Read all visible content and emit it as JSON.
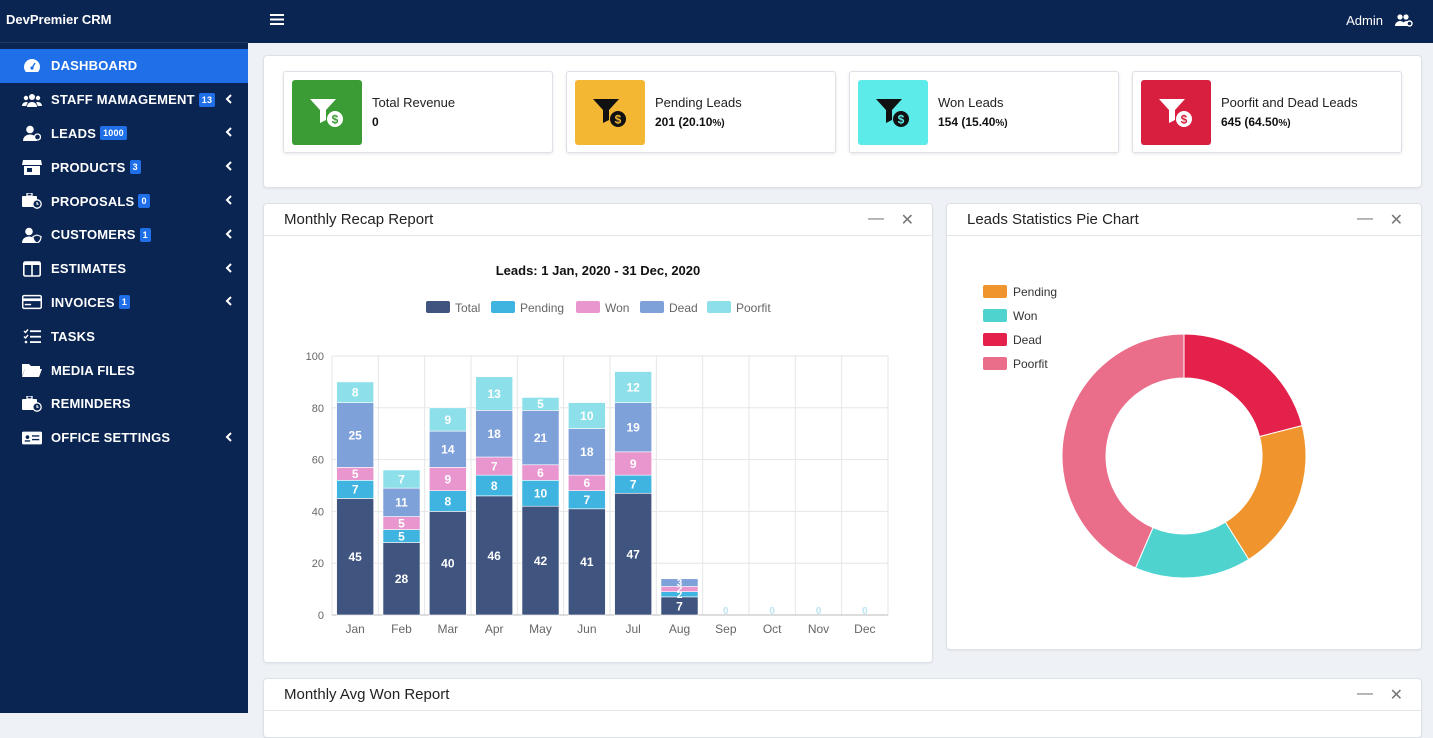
{
  "sidebar": {
    "brand": "DevPremier CRM",
    "items": [
      {
        "label": "DASHBOARD",
        "icon": "dashboard-icon",
        "badge": null,
        "active": true,
        "chev": false
      },
      {
        "label": "STAFF MAMAGEMENT",
        "icon": "users-icon",
        "badge": "13",
        "active": false,
        "chev": true
      },
      {
        "label": "LEADS",
        "icon": "user-icon",
        "badge": "1000",
        "active": false,
        "chev": true
      },
      {
        "label": "PRODUCTS",
        "icon": "store-icon",
        "badge": "3",
        "active": false,
        "chev": true
      },
      {
        "label": "PROPOSALS",
        "icon": "briefcase-clock-icon",
        "badge": "0",
        "active": false,
        "chev": true
      },
      {
        "label": "CUSTOMERS",
        "icon": "user-shield-icon",
        "badge": "1",
        "active": false,
        "chev": true
      },
      {
        "label": "ESTIMATES",
        "icon": "columns-icon",
        "badge": null,
        "active": false,
        "chev": true
      },
      {
        "label": "INVOICES",
        "icon": "card-icon",
        "badge": "1",
        "active": false,
        "chev": true
      },
      {
        "label": "TASKS",
        "icon": "tasks-icon",
        "badge": null,
        "active": false,
        "chev": false
      },
      {
        "label": "MEDIA FILES",
        "icon": "folder-icon",
        "badge": null,
        "active": false,
        "chev": false
      },
      {
        "label": "REMINDERS",
        "icon": "briefcase-clock-icon",
        "badge": null,
        "active": false,
        "chev": false
      },
      {
        "label": "OFFICE SETTINGS",
        "icon": "settings-card-icon",
        "badge": null,
        "active": false,
        "chev": true
      }
    ]
  },
  "topbar": {
    "user": "Admin"
  },
  "stats": [
    {
      "label": "Total Revenue",
      "value": "0",
      "pct": "",
      "color": "#3b9b35",
      "icon_color": "#ffffff"
    },
    {
      "label": "Pending Leads",
      "value": "201 (20.10",
      "pct": "%)",
      "color": "#f3b733",
      "icon_color": "#111111"
    },
    {
      "label": "Won Leads",
      "value": "154 (15.40",
      "pct": "%)",
      "color": "#5cebe8",
      "icon_color": "#111111"
    },
    {
      "label": "Poorfit and Dead Leads",
      "value": "645 (64.50",
      "pct": "%)",
      "color": "#d81f3f",
      "icon_color": "#ffffff"
    }
  ],
  "recap": {
    "title": "Monthly Recap Report",
    "chart_data": {
      "type": "bar",
      "title": "Leads: 1 Jan, 2020 - 31 Dec, 2020",
      "categories": [
        "Jan",
        "Feb",
        "Mar",
        "Apr",
        "May",
        "Jun",
        "Jul",
        "Aug",
        "Sep",
        "Oct",
        "Nov",
        "Dec"
      ],
      "stacked": true,
      "ylim": [
        0,
        100
      ],
      "yticks": [
        0,
        20,
        40,
        60,
        80,
        100
      ],
      "grid": true,
      "legend_position": "top",
      "series": [
        {
          "name": "Total",
          "color": "#3f5580",
          "values": [
            45,
            28,
            40,
            46,
            42,
            41,
            47,
            7,
            0,
            0,
            0,
            0
          ]
        },
        {
          "name": "Pending",
          "color": "#3fb4e0",
          "values": [
            7,
            5,
            8,
            8,
            10,
            7,
            7,
            2,
            0,
            0,
            0,
            0
          ]
        },
        {
          "name": "Won",
          "color": "#e996cf",
          "values": [
            5,
            5,
            9,
            7,
            6,
            6,
            9,
            2,
            0,
            0,
            0,
            0
          ]
        },
        {
          "name": "Dead",
          "color": "#7fa1da",
          "values": [
            25,
            11,
            14,
            18,
            21,
            18,
            19,
            3,
            0,
            0,
            0,
            0
          ]
        },
        {
          "name": "Poorfit",
          "color": "#8de0ea",
          "values": [
            8,
            7,
            9,
            13,
            5,
            10,
            12,
            0,
            0,
            0,
            0,
            0
          ]
        }
      ]
    }
  },
  "pie": {
    "title": "Leads Statistics Pie Chart",
    "chart_data": {
      "type": "pie",
      "legend_position": "top-left",
      "labels": [
        "Pending",
        "Won",
        "Dead",
        "Poorfit"
      ],
      "values": [
        201,
        154,
        210,
        435
      ],
      "colors": [
        "#f0952e",
        "#4ed3cf",
        "#e3214a",
        "#ea6e8a"
      ]
    }
  },
  "avg": {
    "title": "Monthly Avg Won Report"
  }
}
